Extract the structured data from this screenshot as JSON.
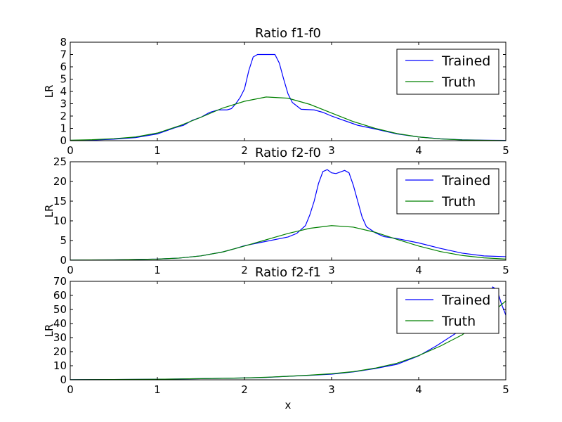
{
  "figure": {
    "xlabel": "x"
  },
  "chart_data": [
    {
      "type": "line",
      "title": "Ratio f1-f0",
      "xlabel": "",
      "ylabel": "LR",
      "xlim": [
        0,
        5
      ],
      "ylim": [
        0,
        8
      ],
      "xticks": [
        0,
        1,
        2,
        3,
        4,
        5
      ],
      "yticks": [
        0,
        1,
        2,
        3,
        4,
        5,
        6,
        7,
        8
      ],
      "legend_position": "top-right",
      "series": [
        {
          "name": "Trained",
          "color": "#0000ff",
          "points": [
            [
              0,
              0.02
            ],
            [
              0.25,
              0.05
            ],
            [
              0.5,
              0.12
            ],
            [
              0.75,
              0.25
            ],
            [
              1.0,
              0.55
            ],
            [
              1.1,
              0.8
            ],
            [
              1.2,
              1.05
            ],
            [
              1.3,
              1.25
            ],
            [
              1.4,
              1.65
            ],
            [
              1.5,
              1.9
            ],
            [
              1.6,
              2.3
            ],
            [
              1.7,
              2.5
            ],
            [
              1.8,
              2.5
            ],
            [
              1.85,
              2.6
            ],
            [
              1.9,
              3.0
            ],
            [
              1.95,
              3.5
            ],
            [
              2.0,
              4.2
            ],
            [
              2.05,
              5.7
            ],
            [
              2.1,
              6.8
            ],
            [
              2.15,
              7.0
            ],
            [
              2.25,
              7.0
            ],
            [
              2.35,
              7.0
            ],
            [
              2.4,
              6.3
            ],
            [
              2.45,
              5.0
            ],
            [
              2.5,
              3.8
            ],
            [
              2.55,
              3.1
            ],
            [
              2.65,
              2.55
            ],
            [
              2.8,
              2.5
            ],
            [
              2.9,
              2.3
            ],
            [
              3.0,
              2.0
            ],
            [
              3.1,
              1.75
            ],
            [
              3.2,
              1.5
            ],
            [
              3.3,
              1.25
            ],
            [
              3.5,
              0.95
            ],
            [
              3.75,
              0.55
            ],
            [
              4.0,
              0.3
            ],
            [
              4.25,
              0.15
            ],
            [
              4.5,
              0.07
            ],
            [
              4.75,
              0.04
            ],
            [
              5.0,
              0.02
            ]
          ]
        },
        {
          "name": "Truth",
          "color": "#008000",
          "points": [
            [
              0,
              0.04
            ],
            [
              0.25,
              0.08
            ],
            [
              0.5,
              0.16
            ],
            [
              0.75,
              0.3
            ],
            [
              1.0,
              0.62
            ],
            [
              1.25,
              1.2
            ],
            [
              1.5,
              1.9
            ],
            [
              1.75,
              2.65
            ],
            [
              2.0,
              3.2
            ],
            [
              2.25,
              3.55
            ],
            [
              2.5,
              3.45
            ],
            [
              2.75,
              2.95
            ],
            [
              3.0,
              2.25
            ],
            [
              3.25,
              1.55
            ],
            [
              3.5,
              1.0
            ],
            [
              3.75,
              0.58
            ],
            [
              4.0,
              0.3
            ],
            [
              4.25,
              0.14
            ],
            [
              4.5,
              0.06
            ],
            [
              4.75,
              0.03
            ],
            [
              5.0,
              0.01
            ]
          ]
        }
      ]
    },
    {
      "type": "line",
      "title": "Ratio f2-f0",
      "xlabel": "",
      "ylabel": "LR",
      "xlim": [
        0,
        5
      ],
      "ylim": [
        0,
        25
      ],
      "xticks": [
        0,
        1,
        2,
        3,
        4,
        5
      ],
      "yticks": [
        0,
        5,
        10,
        15,
        20,
        25
      ],
      "legend_position": "top-right",
      "series": [
        {
          "name": "Trained",
          "color": "#0000ff",
          "points": [
            [
              0,
              0.05
            ],
            [
              0.5,
              0.1
            ],
            [
              1.0,
              0.3
            ],
            [
              1.25,
              0.55
            ],
            [
              1.5,
              1.1
            ],
            [
              1.75,
              2.1
            ],
            [
              1.9,
              3.0
            ],
            [
              2.0,
              3.7
            ],
            [
              2.25,
              4.8
            ],
            [
              2.5,
              5.9
            ],
            [
              2.6,
              6.8
            ],
            [
              2.7,
              8.8
            ],
            [
              2.75,
              11.5
            ],
            [
              2.8,
              15.0
            ],
            [
              2.85,
              19.5
            ],
            [
              2.9,
              22.5
            ],
            [
              2.95,
              23.0
            ],
            [
              3.0,
              22.2
            ],
            [
              3.05,
              22.0
            ],
            [
              3.1,
              22.4
            ],
            [
              3.15,
              22.8
            ],
            [
              3.2,
              22.2
            ],
            [
              3.25,
              19.0
            ],
            [
              3.3,
              15.0
            ],
            [
              3.35,
              11.0
            ],
            [
              3.4,
              8.5
            ],
            [
              3.5,
              7.0
            ],
            [
              3.6,
              6.0
            ],
            [
              3.75,
              5.5
            ],
            [
              4.0,
              4.4
            ],
            [
              4.25,
              3.0
            ],
            [
              4.5,
              1.8
            ],
            [
              4.75,
              1.1
            ],
            [
              5.0,
              0.9
            ]
          ]
        },
        {
          "name": "Truth",
          "color": "#008000",
          "points": [
            [
              0,
              0.05
            ],
            [
              0.5,
              0.1
            ],
            [
              1.0,
              0.3
            ],
            [
              1.25,
              0.55
            ],
            [
              1.5,
              1.1
            ],
            [
              1.75,
              2.1
            ],
            [
              2.0,
              3.6
            ],
            [
              2.25,
              5.2
            ],
            [
              2.5,
              6.8
            ],
            [
              2.75,
              8.1
            ],
            [
              3.0,
              8.8
            ],
            [
              3.25,
              8.4
            ],
            [
              3.5,
              7.1
            ],
            [
              3.75,
              5.3
            ],
            [
              4.0,
              3.6
            ],
            [
              4.25,
              2.2
            ],
            [
              4.5,
              1.2
            ],
            [
              4.75,
              0.6
            ],
            [
              5.0,
              0.3
            ]
          ]
        }
      ]
    },
    {
      "type": "line",
      "title": "Ratio f2-f1",
      "xlabel": "x",
      "ylabel": "LR",
      "xlim": [
        0,
        5
      ],
      "ylim": [
        0,
        70
      ],
      "xticks": [
        0,
        1,
        2,
        3,
        4,
        5
      ],
      "yticks": [
        0,
        10,
        20,
        30,
        40,
        50,
        60,
        70
      ],
      "legend_position": "top-right",
      "series": [
        {
          "name": "Trained",
          "color": "#0000ff",
          "points": [
            [
              0,
              0.1
            ],
            [
              0.5,
              0.2
            ],
            [
              1.0,
              0.4
            ],
            [
              1.5,
              0.8
            ],
            [
              2.0,
              1.3
            ],
            [
              2.25,
              1.7
            ],
            [
              2.5,
              2.5
            ],
            [
              2.75,
              3.2
            ],
            [
              3.0,
              4.0
            ],
            [
              3.25,
              5.6
            ],
            [
              3.5,
              8.0
            ],
            [
              3.75,
              11.0
            ],
            [
              4.0,
              17.0
            ],
            [
              4.2,
              24.0
            ],
            [
              4.4,
              32.0
            ],
            [
              4.6,
              40.0
            ],
            [
              4.7,
              48.0
            ],
            [
              4.8,
              58.0
            ],
            [
              4.85,
              66.0
            ],
            [
              4.9,
              64.0
            ],
            [
              4.95,
              54.0
            ],
            [
              5.0,
              46.0
            ]
          ]
        },
        {
          "name": "Truth",
          "color": "#008000",
          "points": [
            [
              0,
              0.1
            ],
            [
              0.5,
              0.2
            ],
            [
              1.0,
              0.4
            ],
            [
              1.5,
              0.8
            ],
            [
              2.0,
              1.3
            ],
            [
              2.25,
              1.8
            ],
            [
              2.5,
              2.5
            ],
            [
              2.75,
              3.3
            ],
            [
              3.0,
              4.3
            ],
            [
              3.25,
              5.8
            ],
            [
              3.5,
              8.3
            ],
            [
              3.75,
              11.8
            ],
            [
              4.0,
              17.2
            ],
            [
              4.25,
              24.0
            ],
            [
              4.5,
              32.0
            ],
            [
              4.75,
              43.0
            ],
            [
              5.0,
              56.0
            ]
          ]
        }
      ]
    }
  ]
}
